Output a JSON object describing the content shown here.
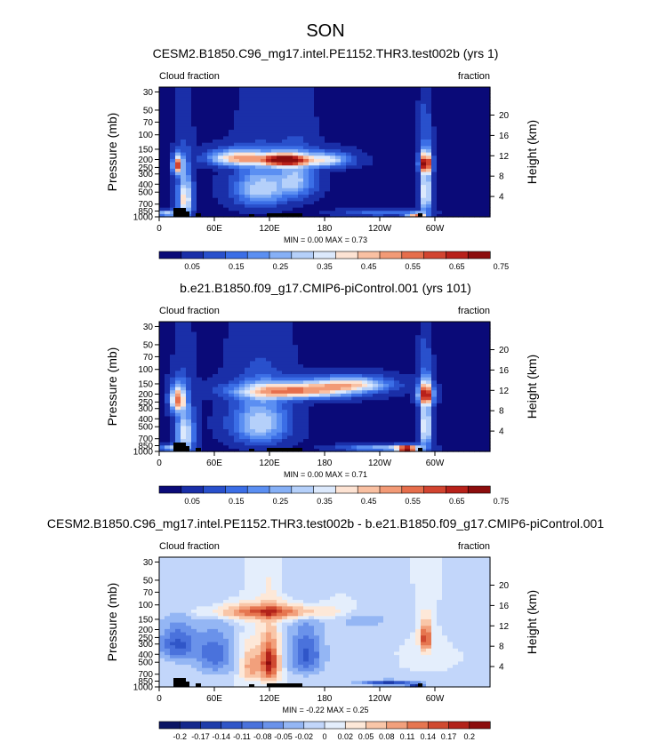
{
  "season": "SON",
  "axis_text": {
    "pressure_label": "Pressure (mb)",
    "height_label": "Height (km)",
    "left_title": "Cloud fraction",
    "right_title": "fraction",
    "min_label": "MIN =",
    "max_label": "MAX ="
  },
  "pressure_ticks": [
    "1000",
    "850",
    "700",
    "500",
    "400",
    "300",
    "250",
    "200",
    "150",
    "100",
    "70",
    "50",
    "30"
  ],
  "height_ticks": [
    "4",
    "8",
    "12",
    "16",
    "20"
  ],
  "lon_ticks": [
    "0",
    "60E",
    "120E",
    "180",
    "120W",
    "60W"
  ],
  "panels": [
    {
      "title": "CESM2.B1850.C96_mg17.intel.PE1152.THR3.test002b (yrs 1)",
      "min_value": "0.00",
      "max_value": "0.73",
      "colorbar_labels": [
        "0.05",
        "0.15",
        "0.25",
        "0.35",
        "0.45",
        "0.55",
        "0.65",
        "0.75"
      ],
      "colors": [
        "#0a0a78",
        "#1a2fa8",
        "#2950cc",
        "#3b6ee6",
        "#5b8ff2",
        "#86b0f6",
        "#b5d0fa",
        "#dce9fc",
        "#fde3d3",
        "#f9c0a2",
        "#f29a76",
        "#e66e4c",
        "#d24430",
        "#b8211a",
        "#8c0d0d"
      ]
    },
    {
      "title": "b.e21.B1850.f09_g17.CMIP6-piControl.001 (yrs 101)",
      "min_value": "0.00",
      "max_value": "0.71",
      "colorbar_labels": [
        "0.05",
        "0.15",
        "0.25",
        "0.35",
        "0.45",
        "0.55",
        "0.65",
        "0.75"
      ],
      "colors": [
        "#0a0a78",
        "#1a2fa8",
        "#2950cc",
        "#3b6ee6",
        "#5b8ff2",
        "#86b0f6",
        "#b5d0fa",
        "#dce9fc",
        "#fde3d3",
        "#f9c0a2",
        "#f29a76",
        "#e66e4c",
        "#d24430",
        "#b8211a",
        "#8c0d0d"
      ]
    },
    {
      "title": "CESM2.B1850.C96_mg17.intel.PE1152.THR3.test002b - b.e21.B1850.f09_g17.CMIP6-piControl.001",
      "min_value": "-0.22",
      "max_value": "0.25",
      "colorbar_labels": [
        "-0.2",
        "-0.17",
        "-0.14",
        "-0.11",
        "-0.08",
        "-0.05",
        "-0.02",
        "0",
        "0.02",
        "0.05",
        "0.08",
        "0.11",
        "0.14",
        "0.17",
        "0.2"
      ],
      "colors": [
        "#0a1464",
        "#14288c",
        "#1e3caa",
        "#3056c8",
        "#4a72dc",
        "#6a92ea",
        "#94b6f4",
        "#c2d6fa",
        "#e4eefc",
        "#fde8d8",
        "#f9c6a8",
        "#f2a07c",
        "#e67650",
        "#d04a30",
        "#b2221a",
        "#8c0d0d"
      ]
    }
  ],
  "chart_data": [
    {
      "type": "heatmap",
      "title": "CESM2.B1850.C96_mg17.intel.PE1152.THR3.test002b (yrs 1)",
      "ylabel": "Pressure (mb)",
      "y2label": "Height (km)",
      "xlim": [
        0,
        360
      ],
      "ylim": [
        1000,
        30
      ],
      "min": 0.0,
      "max": 0.73,
      "levels": [
        0.05,
        0.1,
        0.15,
        0.2,
        0.25,
        0.3,
        0.35,
        0.4,
        0.45,
        0.5,
        0.55,
        0.6,
        0.65,
        0.7
      ],
      "features": [
        {
          "lon": 135,
          "p": 200,
          "lon_halfwidth": 22,
          "p_halfwidth": 35,
          "value": 0.68
        },
        {
          "lon": 85,
          "p": 190,
          "lon_halfwidth": 30,
          "p_halfwidth": 40,
          "value": 0.45
        },
        {
          "lon": 180,
          "p": 200,
          "lon_halfwidth": 28,
          "p_halfwidth": 40,
          "value": 0.35
        },
        {
          "lon": 20,
          "p": 230,
          "lon_halfwidth": 5,
          "p_halfwidth": 60,
          "value": 0.55
        },
        {
          "lon": 28,
          "p": 600,
          "lon_halfwidth": 8,
          "p_halfwidth": 350,
          "value": 0.4
        },
        {
          "lon": 110,
          "p": 450,
          "lon_halfwidth": 28,
          "p_halfwidth": 250,
          "value": 0.3
        },
        {
          "lon": 150,
          "p": 350,
          "lon_halfwidth": 20,
          "p_halfwidth": 200,
          "value": 0.25
        },
        {
          "lon": 290,
          "p": 220,
          "lon_halfwidth": 6,
          "p_halfwidth": 60,
          "value": 0.6
        },
        {
          "lon": 290,
          "p": 500,
          "lon_halfwidth": 6,
          "p_halfwidth": 350,
          "value": 0.4
        },
        {
          "lon": 280,
          "p": 940,
          "lon_halfwidth": 10,
          "p_halfwidth": 60,
          "value": 0.55
        },
        {
          "lon": 240,
          "p": 880,
          "lon_halfwidth": 40,
          "p_halfwidth": 80,
          "value": 0.15
        },
        {
          "lon": 10,
          "p": 900,
          "lon_halfwidth": 15,
          "p_halfwidth": 80,
          "value": 0.3
        }
      ]
    },
    {
      "type": "heatmap",
      "title": "b.e21.B1850.f09_g17.CMIP6-piControl.001 (yrs 101)",
      "ylabel": "Pressure (mb)",
      "y2label": "Height (km)",
      "xlim": [
        0,
        360
      ],
      "ylim": [
        1000,
        30
      ],
      "min": 0.0,
      "max": 0.71,
      "levels": [
        0.05,
        0.1,
        0.15,
        0.2,
        0.25,
        0.3,
        0.35,
        0.4,
        0.45,
        0.5,
        0.55,
        0.6,
        0.65,
        0.7
      ],
      "features": [
        {
          "lon": 150,
          "p": 180,
          "lon_halfwidth": 60,
          "p_halfwidth": 40,
          "value": 0.5
        },
        {
          "lon": 210,
          "p": 150,
          "lon_halfwidth": 40,
          "p_halfwidth": 30,
          "value": 0.35
        },
        {
          "lon": 20,
          "p": 230,
          "lon_halfwidth": 8,
          "p_halfwidth": 80,
          "value": 0.5
        },
        {
          "lon": 28,
          "p": 600,
          "lon_halfwidth": 10,
          "p_halfwidth": 350,
          "value": 0.35
        },
        {
          "lon": 110,
          "p": 450,
          "lon_halfwidth": 30,
          "p_halfwidth": 300,
          "value": 0.3
        },
        {
          "lon": 290,
          "p": 200,
          "lon_halfwidth": 8,
          "p_halfwidth": 60,
          "value": 0.55
        },
        {
          "lon": 290,
          "p": 500,
          "lon_halfwidth": 6,
          "p_halfwidth": 350,
          "value": 0.4
        },
        {
          "lon": 270,
          "p": 920,
          "lon_halfwidth": 12,
          "p_halfwidth": 80,
          "value": 0.7
        },
        {
          "lon": 240,
          "p": 900,
          "lon_halfwidth": 40,
          "p_halfwidth": 80,
          "value": 0.25
        },
        {
          "lon": 15,
          "p": 900,
          "lon_halfwidth": 15,
          "p_halfwidth": 80,
          "value": 0.3
        }
      ]
    },
    {
      "type": "heatmap",
      "title": "CESM2.B1850.C96_mg17.intel.PE1152.THR3.test002b - b.e21.B1850.f09_g17.CMIP6-piControl.001",
      "ylabel": "Pressure (mb)",
      "y2label": "Height (km)",
      "xlim": [
        0,
        360
      ],
      "ylim": [
        1000,
        30
      ],
      "min": -0.22,
      "max": 0.25,
      "levels": [
        -0.2,
        -0.17,
        -0.14,
        -0.11,
        -0.08,
        -0.05,
        -0.02,
        0,
        0.02,
        0.05,
        0.08,
        0.11,
        0.14,
        0.17,
        0.2
      ],
      "features": [
        {
          "lon": 120,
          "p": 120,
          "lon_halfwidth": 60,
          "p_halfwidth": 25,
          "value": 0.15
        },
        {
          "lon": 120,
          "p": 500,
          "lon_halfwidth": 10,
          "p_halfwidth": 300,
          "value": 0.2
        },
        {
          "lon": 100,
          "p": 550,
          "lon_halfwidth": 10,
          "p_halfwidth": 250,
          "value": 0.1
        },
        {
          "lon": 20,
          "p": 300,
          "lon_halfwidth": 20,
          "p_halfwidth": 150,
          "value": -0.12
        },
        {
          "lon": 60,
          "p": 400,
          "lon_halfwidth": 20,
          "p_halfwidth": 250,
          "value": -0.1
        },
        {
          "lon": 160,
          "p": 400,
          "lon_halfwidth": 18,
          "p_halfwidth": 250,
          "value": -0.12
        },
        {
          "lon": 290,
          "p": 250,
          "lon_halfwidth": 6,
          "p_halfwidth": 100,
          "value": 0.18
        },
        {
          "lon": 250,
          "p": 880,
          "lon_halfwidth": 30,
          "p_halfwidth": 60,
          "value": -0.15
        },
        {
          "lon": 280,
          "p": 940,
          "lon_halfwidth": 8,
          "p_halfwidth": 40,
          "value": -0.2
        },
        {
          "lon": 220,
          "p": 150,
          "lon_halfwidth": 40,
          "p_halfwidth": 40,
          "value": -0.03
        }
      ]
    }
  ]
}
